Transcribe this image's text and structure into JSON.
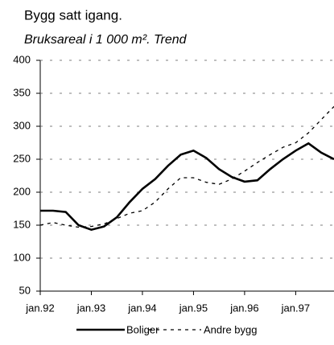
{
  "chart_data": {
    "type": "line",
    "title": "Bygg satt igang.",
    "subtitle": "Bruksareal i 1 000 m². Trend",
    "x": [
      1992.0,
      1992.25,
      1992.5,
      1992.75,
      1993.0,
      1993.25,
      1993.5,
      1993.75,
      1994.0,
      1994.25,
      1994.5,
      1994.75,
      1995.0,
      1995.25,
      1995.5,
      1995.75,
      1996.0,
      1996.25,
      1996.5,
      1996.75,
      1997.0,
      1997.25,
      1997.5,
      1997.75
    ],
    "series": [
      {
        "name": "Boliger",
        "color": "#000000",
        "dash": "solid",
        "values": [
          172,
          172,
          170,
          150,
          143,
          148,
          162,
          185,
          205,
          220,
          240,
          257,
          263,
          252,
          235,
          223,
          216,
          218,
          235,
          250,
          263,
          274,
          260,
          250
        ]
      },
      {
        "name": "Andre bygg",
        "color": "#000000",
        "dash": "dashed",
        "values": [
          150,
          154,
          150,
          147,
          148,
          152,
          160,
          168,
          172,
          185,
          205,
          222,
          222,
          215,
          212,
          220,
          232,
          245,
          257,
          268,
          275,
          290,
          310,
          330
        ]
      }
    ],
    "xlim": [
      1992.0,
      1997.75
    ],
    "xticks": [
      {
        "value": 1992,
        "label": "jan.92"
      },
      {
        "value": 1993,
        "label": "jan.93"
      },
      {
        "value": 1994,
        "label": "jan.94"
      },
      {
        "value": 1995,
        "label": "jan.95"
      },
      {
        "value": 1996,
        "label": "jan.96"
      },
      {
        "value": 1997,
        "label": "jan.97"
      }
    ],
    "ylim": [
      50,
      400
    ],
    "yticks": [
      50,
      100,
      150,
      200,
      250,
      300,
      350,
      400
    ],
    "grid": true,
    "legend": "bottom"
  }
}
